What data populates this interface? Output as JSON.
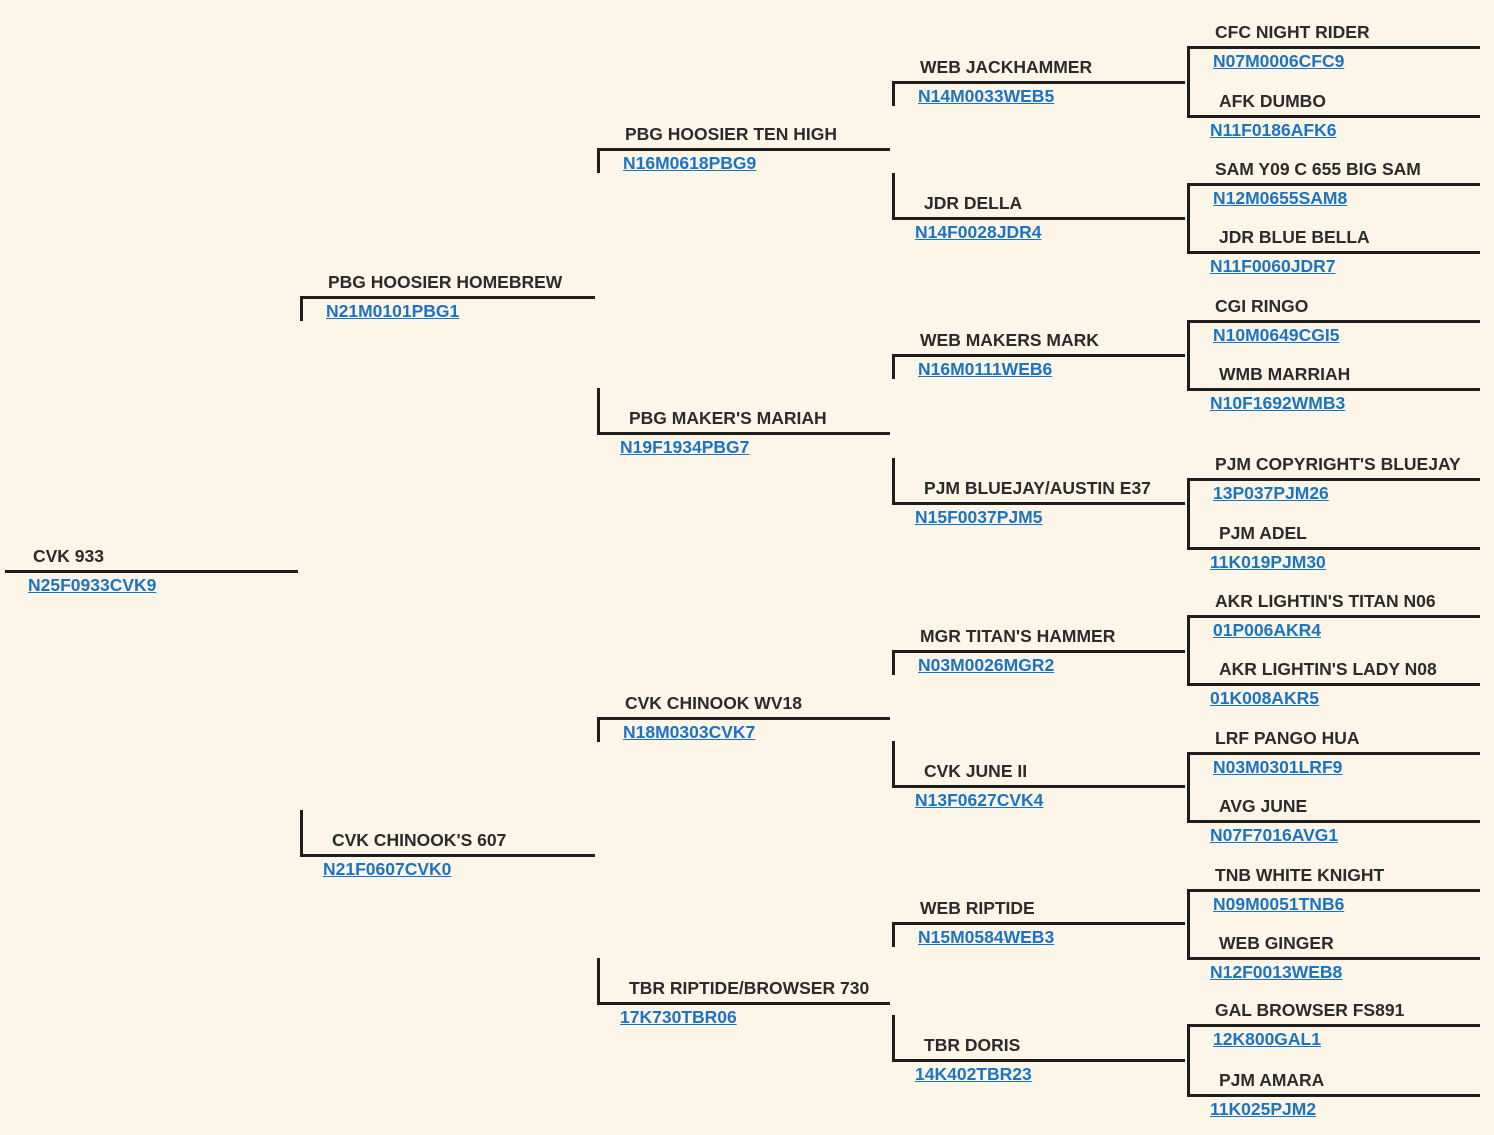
{
  "colors": {
    "background": "#fdf5e7",
    "line": "#1e1e1e",
    "name_text": "#2b2b2b",
    "link": "#1a74c4"
  },
  "animals": [
    {
      "name": "CVK 933",
      "reg": "N25F0933CVK9"
    },
    {
      "name": "PBG HOOSIER HOMEBREW",
      "reg": "N21M0101PBG1"
    },
    {
      "name": "CVK CHINOOK'S 607",
      "reg": "N21F0607CVK0"
    },
    {
      "name": "PBG HOOSIER TEN HIGH",
      "reg": "N16M0618PBG9"
    },
    {
      "name": "PBG MAKER'S MARIAH",
      "reg": "N19F1934PBG7"
    },
    {
      "name": "CVK CHINOOK WV18",
      "reg": "N18M0303CVK7"
    },
    {
      "name": "TBR RIPTIDE/BROWSER 730",
      "reg": "17K730TBR06"
    },
    {
      "name": "WEB JACKHAMMER",
      "reg": "N14M0033WEB5"
    },
    {
      "name": "JDR DELLA",
      "reg": "N14F0028JDR4"
    },
    {
      "name": "WEB MAKERS MARK",
      "reg": "N16M0111WEB6"
    },
    {
      "name": "PJM BLUEJAY/AUSTIN E37",
      "reg": "N15F0037PJM5"
    },
    {
      "name": "MGR TITAN'S HAMMER",
      "reg": "N03M0026MGR2"
    },
    {
      "name": "CVK JUNE II",
      "reg": "N13F0627CVK4"
    },
    {
      "name": "WEB RIPTIDE",
      "reg": "N15M0584WEB3"
    },
    {
      "name": "TBR DORIS",
      "reg": "14K402TBR23"
    },
    {
      "name": "CFC NIGHT RIDER",
      "reg": "N07M0006CFC9"
    },
    {
      "name": "AFK DUMBO",
      "reg": "N11F0186AFK6"
    },
    {
      "name": "SAM Y09 C 655 BIG SAM",
      "reg": "N12M0655SAM8"
    },
    {
      "name": "JDR BLUE BELLA",
      "reg": "N11F0060JDR7"
    },
    {
      "name": "CGI RINGO",
      "reg": "N10M0649CGI5"
    },
    {
      "name": "WMB MARRIAH",
      "reg": "N10F1692WMB3"
    },
    {
      "name": "PJM COPYRIGHT'S BLUEJAY",
      "reg": "13P037PJM26"
    },
    {
      "name": "PJM ADEL",
      "reg": "11K019PJM30"
    },
    {
      "name": "AKR LIGHTIN'S TITAN N06",
      "reg": "01P006AKR4"
    },
    {
      "name": "AKR LIGHTIN'S LADY N08",
      "reg": "01K008AKR5"
    },
    {
      "name": "LRF PANGO HUA",
      "reg": "N03M0301LRF9"
    },
    {
      "name": "AVG JUNE",
      "reg": "N07F7016AVG1"
    },
    {
      "name": "TNB WHITE KNIGHT",
      "reg": "N09M0051TNB6"
    },
    {
      "name": "WEB GINGER",
      "reg": "N12F0013WEB8"
    },
    {
      "name": "GAL BROWSER FS891",
      "reg": "12K800GAL1"
    },
    {
      "name": "PJM AMARA",
      "reg": "11K025PJM2"
    }
  ]
}
